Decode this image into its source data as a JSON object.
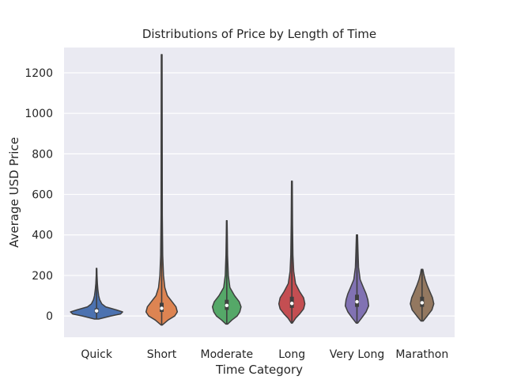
{
  "chart_data": {
    "type": "violin",
    "title": "Distributions of Price by Length of Time",
    "xlabel": "Time Category",
    "ylabel": "Average USD Price",
    "categories": [
      "Quick",
      "Short",
      "Moderate",
      "Long",
      "Very Long",
      "Marathon"
    ],
    "ylim": [
      -105,
      1325
    ],
    "yticks": [
      0,
      200,
      400,
      600,
      800,
      1000,
      1200
    ],
    "grid": true,
    "background": "#eaeaf2",
    "series": [
      {
        "category": "Quick",
        "color": "#4c72b0",
        "min": -15,
        "max": 235,
        "q1": 15,
        "median": 25,
        "q3": 38,
        "density": [
          [
            -15,
            0.08
          ],
          [
            0,
            0.55
          ],
          [
            10,
            0.92
          ],
          [
            20,
            1.0
          ],
          [
            30,
            0.75
          ],
          [
            45,
            0.35
          ],
          [
            60,
            0.2
          ],
          [
            80,
            0.12
          ],
          [
            100,
            0.08
          ],
          [
            130,
            0.05
          ],
          [
            160,
            0.03
          ],
          [
            200,
            0.015
          ],
          [
            235,
            0.01
          ]
        ]
      },
      {
        "category": "Short",
        "color": "#dd8452",
        "min": -45,
        "max": 1290,
        "q1": 20,
        "median": 38,
        "q3": 65,
        "density": [
          [
            -45,
            0.02
          ],
          [
            -20,
            0.25
          ],
          [
            0,
            0.5
          ],
          [
            20,
            0.6
          ],
          [
            45,
            0.55
          ],
          [
            70,
            0.4
          ],
          [
            100,
            0.22
          ],
          [
            140,
            0.12
          ],
          [
            200,
            0.07
          ],
          [
            300,
            0.04
          ],
          [
            500,
            0.025
          ],
          [
            800,
            0.02
          ],
          [
            1290,
            0.015
          ]
        ]
      },
      {
        "category": "Moderate",
        "color": "#55a868",
        "min": -40,
        "max": 470,
        "q1": 30,
        "median": 52,
        "q3": 80,
        "density": [
          [
            -40,
            0.03
          ],
          [
            -20,
            0.2
          ],
          [
            0,
            0.4
          ],
          [
            20,
            0.5
          ],
          [
            45,
            0.55
          ],
          [
            70,
            0.48
          ],
          [
            100,
            0.3
          ],
          [
            140,
            0.12
          ],
          [
            200,
            0.06
          ],
          [
            300,
            0.03
          ],
          [
            400,
            0.02
          ],
          [
            470,
            0.012
          ]
        ]
      },
      {
        "category": "Long",
        "color": "#c44e52",
        "min": -35,
        "max": 665,
        "q1": 40,
        "median": 62,
        "q3": 95,
        "density": [
          [
            -35,
            0.02
          ],
          [
            -10,
            0.15
          ],
          [
            10,
            0.3
          ],
          [
            35,
            0.45
          ],
          [
            60,
            0.5
          ],
          [
            90,
            0.45
          ],
          [
            120,
            0.3
          ],
          [
            160,
            0.14
          ],
          [
            220,
            0.07
          ],
          [
            300,
            0.04
          ],
          [
            450,
            0.025
          ],
          [
            665,
            0.015
          ]
        ]
      },
      {
        "category": "Very Long",
        "color": "#8172b3",
        "min": -35,
        "max": 400,
        "q1": 45,
        "median": 70,
        "q3": 105,
        "density": [
          [
            -35,
            0.03
          ],
          [
            -10,
            0.18
          ],
          [
            20,
            0.35
          ],
          [
            50,
            0.45
          ],
          [
            80,
            0.42
          ],
          [
            110,
            0.35
          ],
          [
            140,
            0.25
          ],
          [
            180,
            0.12
          ],
          [
            240,
            0.06
          ],
          [
            320,
            0.04
          ],
          [
            400,
            0.02
          ]
        ]
      },
      {
        "category": "Marathon",
        "color": "#937860",
        "min": -25,
        "max": 230,
        "q1": 45,
        "median": 65,
        "q3": 95,
        "density": [
          [
            -25,
            0.04
          ],
          [
            0,
            0.2
          ],
          [
            30,
            0.38
          ],
          [
            60,
            0.45
          ],
          [
            90,
            0.4
          ],
          [
            120,
            0.3
          ],
          [
            150,
            0.2
          ],
          [
            180,
            0.12
          ],
          [
            210,
            0.06
          ],
          [
            230,
            0.03
          ]
        ]
      }
    ]
  }
}
